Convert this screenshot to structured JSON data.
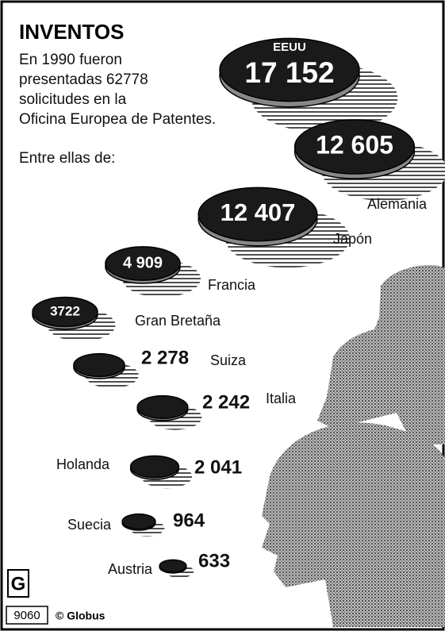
{
  "chart_data": {
    "type": "bubble",
    "title": "INVENTOS",
    "subtitle": [
      "En 1990 fueron",
      "presentadas 62778",
      "solicitudes en la",
      "Oficina Europea de Patentes.",
      "Entre ellas de:"
    ],
    "categories": [
      "EEUU",
      "Alemania",
      "Japón",
      "Francia",
      "Gran Bretaña",
      "Suiza",
      "Italia",
      "Holanda",
      "Suecia",
      "Austria"
    ],
    "values": [
      17152,
      12605,
      12407,
      4909,
      3722,
      2278,
      2242,
      2041,
      964,
      633
    ],
    "value_labels": [
      "17 152",
      "12 605",
      "12 407",
      "4 909",
      "3722",
      "2 278",
      "2 242",
      "2 041",
      "964",
      "633"
    ],
    "color": "#1a1a1a",
    "source": "© Globus",
    "logo": "G",
    "code": "9060"
  }
}
